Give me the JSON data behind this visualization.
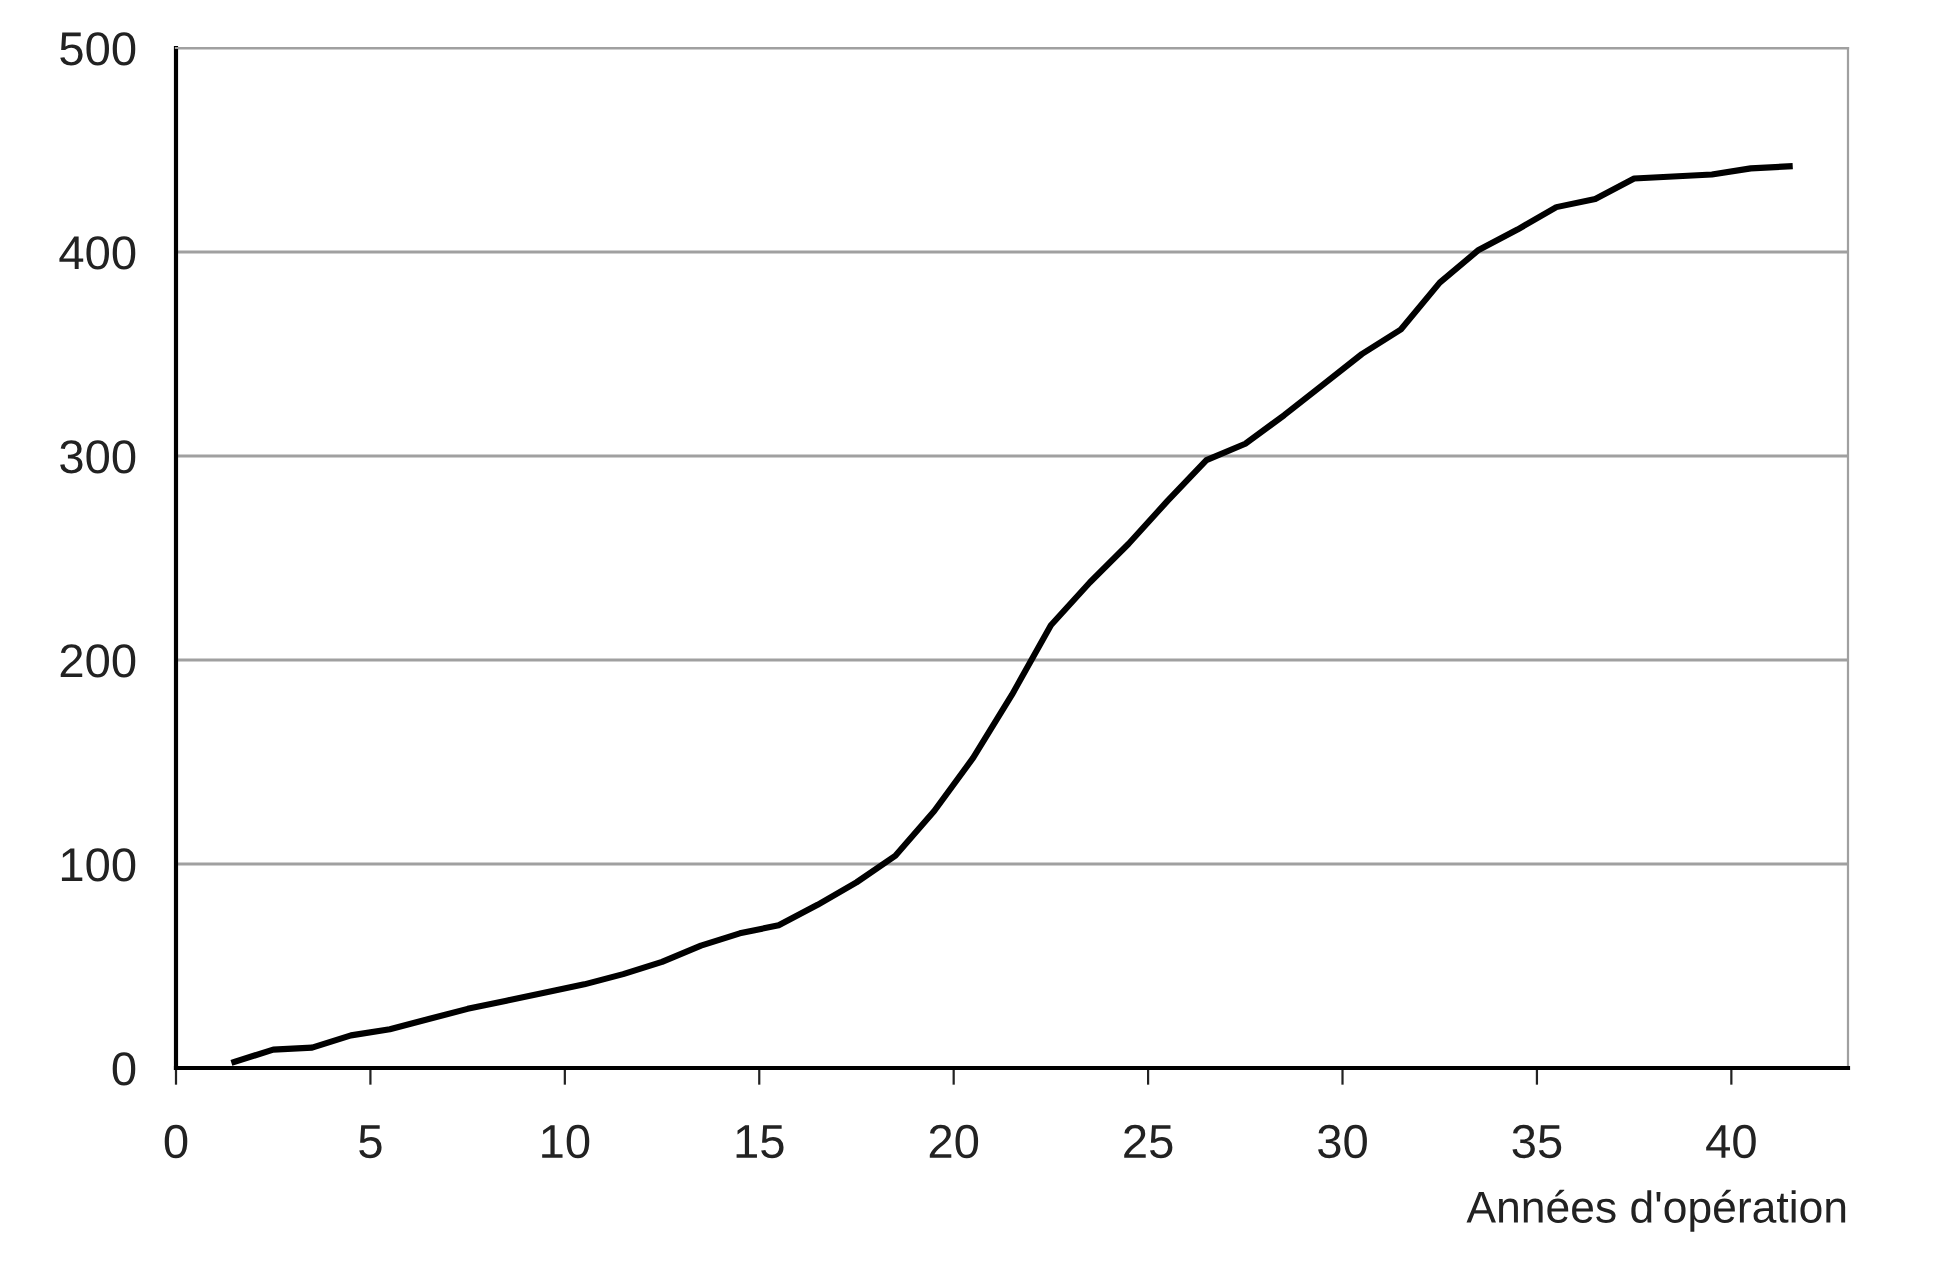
{
  "chart_data": {
    "type": "line",
    "xlabel": "Années d'opération",
    "x": [
      1.5,
      2.5,
      3.5,
      4.5,
      5.5,
      6.5,
      7.5,
      8.5,
      9.5,
      10.5,
      11.5,
      12.5,
      13.5,
      14.5,
      15.5,
      16.5,
      17.5,
      18.5,
      19.5,
      20.5,
      21.5,
      22.5,
      23.5,
      24.5,
      25.5,
      26.5,
      27.5,
      28.5,
      29.5,
      30.5,
      31.5,
      32.5,
      33.5,
      34.5,
      35.5,
      36.5,
      37.5,
      38.5,
      39.5,
      40.5,
      41.5
    ],
    "series": [
      {
        "color": "#000000",
        "values": [
          3,
          9,
          10,
          16,
          19,
          24,
          29,
          33,
          37,
          41,
          46,
          52,
          60,
          66,
          70,
          80,
          91,
          104,
          126,
          152,
          183,
          217,
          238,
          257,
          278,
          298,
          306,
          320,
          335,
          350,
          362,
          385,
          401,
          411,
          422,
          426,
          436,
          437,
          438,
          441,
          442
        ]
      }
    ],
    "xlim": [
      0,
      43
    ],
    "ylim": [
      0,
      500
    ],
    "xticks": [
      0,
      5,
      10,
      15,
      20,
      25,
      30,
      35,
      40
    ],
    "yticks": [
      0,
      100,
      200,
      300,
      400,
      500
    ],
    "grid": "y",
    "legend": false,
    "marker": "none",
    "line_style": "solid"
  }
}
